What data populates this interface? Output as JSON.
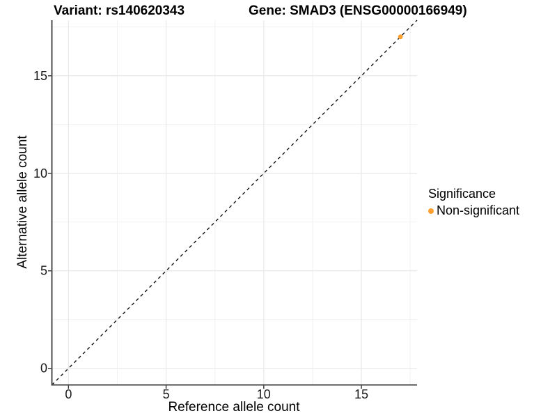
{
  "titles": {
    "variant": "Variant: rs140620343",
    "gene": "Gene: SMAD3 (ENSG00000166949)"
  },
  "legend": {
    "title": "Significance",
    "items": [
      {
        "label": "Non-significant",
        "color": "#FFA033"
      }
    ]
  },
  "chart_data": {
    "type": "scatter",
    "title_left": "Variant: rs140620343",
    "title_right": "Gene: SMAD3 (ENSG00000166949)",
    "xlabel": "Reference allele count",
    "ylabel": "Alternative allele count",
    "xlim": [
      -0.85,
      17.85
    ],
    "ylim": [
      -0.85,
      17.85
    ],
    "xticks": [
      0,
      5,
      10,
      15
    ],
    "yticks": [
      0,
      5,
      10,
      15
    ],
    "xticks_minor": [
      2.5,
      7.5,
      12.5,
      17.5
    ],
    "yticks_minor": [
      2.5,
      7.5,
      12.5,
      17.5
    ],
    "grid": "major+minor",
    "legend_position": "right",
    "series": [
      {
        "name": "Non-significant",
        "color": "#FFA033",
        "points": [
          [
            17,
            17
          ]
        ]
      }
    ],
    "reference_line": {
      "type": "identity",
      "style": "dashed",
      "color": "#111111",
      "from": [
        -0.85,
        -0.85
      ],
      "to": [
        17.85,
        17.85
      ]
    }
  },
  "style": {
    "background": "#ffffff",
    "grid_major": "#e8e8e8",
    "grid_minor": "#f1f1f1",
    "axis_line": "#4d4d4d",
    "tick_color": "#333333",
    "tick_label_color": "#1a1a1a",
    "point_color": "#FFA033"
  }
}
